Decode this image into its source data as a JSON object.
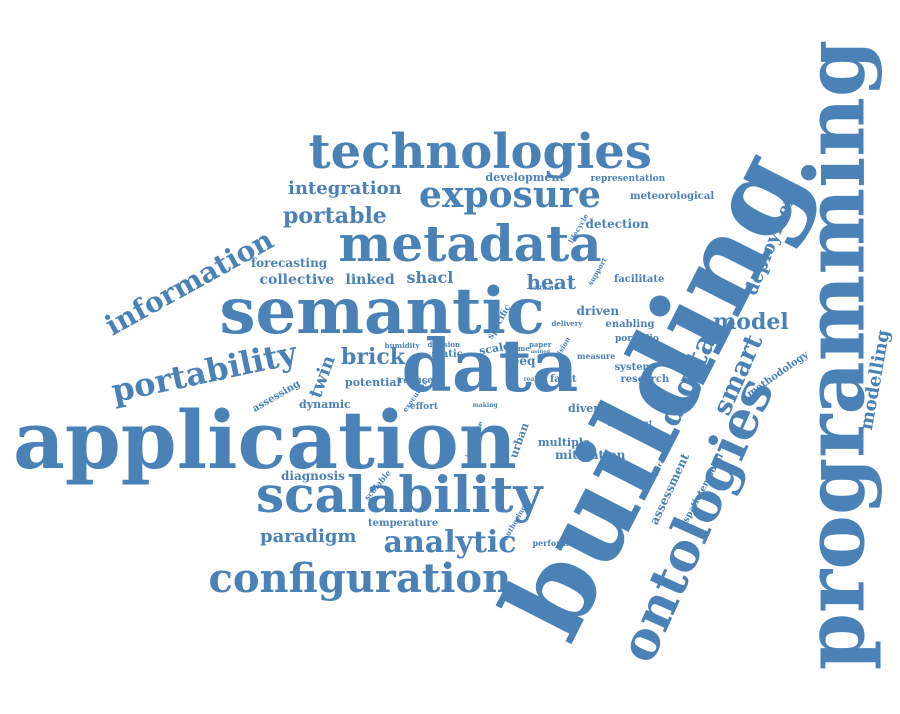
{
  "color": "#4a82b8",
  "words": [
    {
      "text": "application"
    },
    {
      "text": "building"
    },
    {
      "text": "programming"
    },
    {
      "text": "semantic"
    },
    {
      "text": "metadata"
    },
    {
      "text": "technologies"
    },
    {
      "text": "ontologies"
    },
    {
      "text": "scalability"
    },
    {
      "text": "configuration"
    },
    {
      "text": "exposure"
    },
    {
      "text": "data"
    },
    {
      "text": "portability"
    },
    {
      "text": "information"
    },
    {
      "text": "analytic"
    },
    {
      "text": "digital"
    },
    {
      "text": "smart"
    },
    {
      "text": "model"
    },
    {
      "text": "portable"
    },
    {
      "text": "integration"
    },
    {
      "text": "brick"
    },
    {
      "text": "deployment"
    },
    {
      "text": "modelling"
    },
    {
      "text": "twin"
    },
    {
      "text": "paradigm"
    },
    {
      "text": "collective"
    },
    {
      "text": "linked"
    },
    {
      "text": "shacl"
    },
    {
      "text": "heat"
    },
    {
      "text": "development"
    },
    {
      "text": "representation"
    },
    {
      "text": "meteorological"
    },
    {
      "text": "detection"
    },
    {
      "text": "forecasting"
    },
    {
      "text": "lifecycle"
    },
    {
      "text": "support"
    },
    {
      "text": "facilitate"
    },
    {
      "text": "software"
    },
    {
      "text": "specific"
    },
    {
      "text": "driven"
    },
    {
      "text": "delivery"
    },
    {
      "text": "enabling"
    },
    {
      "text": "portfolio"
    },
    {
      "text": "humidity"
    },
    {
      "text": "decision"
    },
    {
      "text": "static"
    },
    {
      "text": "scale"
    },
    {
      "text": "time"
    },
    {
      "text": "seeq"
    },
    {
      "text": "paper"
    },
    {
      "text": "unified"
    },
    {
      "text": "vision"
    },
    {
      "text": "measure"
    },
    {
      "text": "potential"
    },
    {
      "text": "reduce"
    },
    {
      "text": "system"
    },
    {
      "text": "research"
    },
    {
      "text": "methodology"
    },
    {
      "text": "dynamic"
    },
    {
      "text": "assessing"
    },
    {
      "text": "effort"
    },
    {
      "text": "execution"
    },
    {
      "text": "making"
    },
    {
      "text": "real"
    },
    {
      "text": "fault"
    },
    {
      "text": "diverse"
    },
    {
      "text": "important"
    },
    {
      "text": "introduce"
    },
    {
      "text": "urban"
    },
    {
      "text": "multiple"
    },
    {
      "text": "mitigation"
    },
    {
      "text": "operational"
    },
    {
      "text": "assessment"
    },
    {
      "text": "spatiotemporal"
    },
    {
      "text": "diagnosis"
    },
    {
      "text": "scalable"
    },
    {
      "text": "temperature"
    },
    {
      "text": "authoring"
    },
    {
      "text": "performance"
    }
  ]
}
